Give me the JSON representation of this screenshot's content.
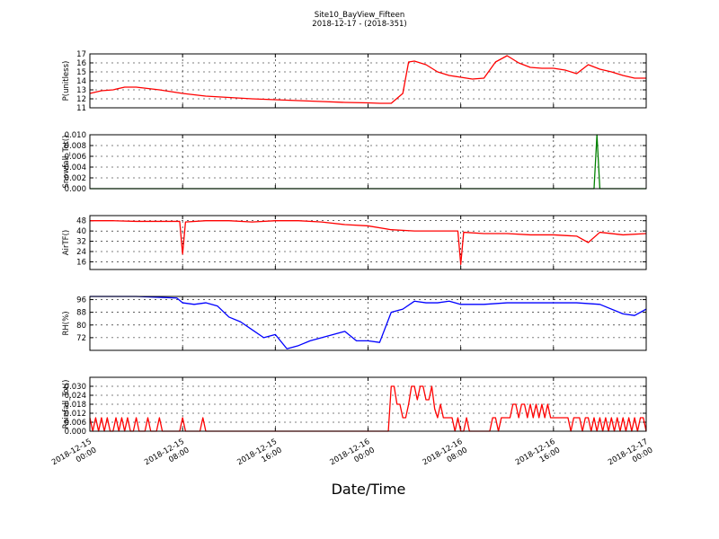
{
  "title": {
    "line1": "Site10_BayView_Fifteen",
    "line2": "2018-12-17 - (2018-351)"
  },
  "xlabel": "Date/Time",
  "x_ticks": [
    {
      "line1": "2018-12-15",
      "line2": "00:00"
    },
    {
      "line1": "2018-12-15",
      "line2": "08:00"
    },
    {
      "line1": "2018-12-15",
      "line2": "16:00"
    },
    {
      "line1": "2018-12-16",
      "line2": "00:00"
    },
    {
      "line1": "2018-12-16",
      "line2": "08:00"
    },
    {
      "line1": "2018-12-16",
      "line2": "16:00"
    },
    {
      "line1": "2018-12-17",
      "line2": "00:00"
    }
  ],
  "chart_data": [
    {
      "type": "line",
      "ylabel": "P(unitless)",
      "ylim": [
        11,
        17
      ],
      "yticks": [
        "11",
        "12",
        "13",
        "14",
        "15",
        "16",
        "17"
      ],
      "grid": true,
      "series": [
        {
          "color": "#ff0000",
          "x": [
            "2018-12-15 00:00",
            "2018-12-15 01:00",
            "2018-12-15 02:00",
            "2018-12-15 03:00",
            "2018-12-15 04:00",
            "2018-12-15 06:00",
            "2018-12-15 08:00",
            "2018-12-15 10:00",
            "2018-12-15 12:00",
            "2018-12-15 14:00",
            "2018-12-15 16:00",
            "2018-12-15 18:00",
            "2018-12-15 20:00",
            "2018-12-15 22:00",
            "2018-12-16 00:00",
            "2018-12-16 01:00",
            "2018-12-16 02:00",
            "2018-12-16 03:00",
            "2018-12-16 03:30",
            "2018-12-16 04:00",
            "2018-12-16 05:00",
            "2018-12-16 06:00",
            "2018-12-16 07:00",
            "2018-12-16 08:00",
            "2018-12-16 09:00",
            "2018-12-16 10:00",
            "2018-12-16 11:00",
            "2018-12-16 12:00",
            "2018-12-16 13:00",
            "2018-12-16 14:00",
            "2018-12-16 15:00",
            "2018-12-16 16:00",
            "2018-12-16 17:00",
            "2018-12-16 18:00",
            "2018-12-16 19:00",
            "2018-12-16 20:00",
            "2018-12-16 21:00",
            "2018-12-16 22:00",
            "2018-12-16 23:00",
            "2018-12-17 00:00"
          ],
          "values": [
            12.6,
            12.9,
            13.0,
            13.3,
            13.3,
            13.0,
            12.6,
            12.3,
            12.15,
            12.0,
            11.9,
            11.8,
            11.7,
            11.6,
            11.55,
            11.5,
            11.5,
            12.6,
            16.1,
            16.2,
            15.8,
            15.0,
            14.6,
            14.4,
            14.2,
            14.3,
            16.1,
            16.8,
            16.0,
            15.5,
            15.4,
            15.4,
            15.2,
            14.8,
            15.8,
            15.3,
            15.0,
            14.6,
            14.3,
            14.3
          ]
        }
      ]
    },
    {
      "type": "line",
      "ylabel": "Snowfall_Tot()",
      "ylim": [
        0,
        0.01
      ],
      "yticks": [
        "0.000",
        "0.002",
        "0.004",
        "0.006",
        "0.008",
        "0.010"
      ],
      "grid": true,
      "series": [
        {
          "color": "#008000",
          "x": [
            "2018-12-15 00:00",
            "2018-12-16 19:30",
            "2018-12-16 19:45",
            "2018-12-16 20:00",
            "2018-12-17 00:00"
          ],
          "values": [
            0,
            0,
            0.01,
            0,
            0
          ]
        }
      ]
    },
    {
      "type": "line",
      "ylabel": "AirTF()",
      "ylim": [
        10,
        52
      ],
      "yticks": [
        "16",
        "24",
        "32",
        "40",
        "48"
      ],
      "grid": true,
      "series": [
        {
          "color": "#ff0000",
          "x": [
            "2018-12-15 00:00",
            "2018-12-15 02:00",
            "2018-12-15 04:00",
            "2018-12-15 06:00",
            "2018-12-15 07:45",
            "2018-12-15 08:00",
            "2018-12-15 08:15",
            "2018-12-15 10:00",
            "2018-12-15 12:00",
            "2018-12-15 14:00",
            "2018-12-15 16:00",
            "2018-12-15 18:00",
            "2018-12-15 20:00",
            "2018-12-15 22:00",
            "2018-12-16 00:00",
            "2018-12-16 02:00",
            "2018-12-16 04:00",
            "2018-12-16 06:00",
            "2018-12-16 07:45",
            "2018-12-16 08:00",
            "2018-12-16 08:15",
            "2018-12-16 10:00",
            "2018-12-16 12:00",
            "2018-12-16 14:00",
            "2018-12-16 16:00",
            "2018-12-16 18:00",
            "2018-12-16 19:00",
            "2018-12-16 20:00",
            "2018-12-16 22:00",
            "2018-12-17 00:00"
          ],
          "values": [
            48,
            48,
            47.5,
            47.5,
            47.5,
            22,
            47,
            48,
            48,
            47,
            48,
            48,
            47,
            45,
            44,
            41,
            40,
            40,
            40,
            14,
            39,
            38,
            38,
            37,
            37,
            36,
            31,
            39,
            37,
            38
          ]
        }
      ]
    },
    {
      "type": "line",
      "ylabel": "RH(%)",
      "ylim": [
        64,
        98
      ],
      "yticks": [
        "72",
        "80",
        "88",
        "96"
      ],
      "grid": true,
      "series": [
        {
          "color": "#0000ff",
          "x": [
            "2018-12-15 00:00",
            "2018-12-15 04:00",
            "2018-12-15 07:30",
            "2018-12-15 08:00",
            "2018-12-15 09:00",
            "2018-12-15 10:00",
            "2018-12-15 11:00",
            "2018-12-15 12:00",
            "2018-12-15 13:00",
            "2018-12-15 14:00",
            "2018-12-15 15:00",
            "2018-12-15 16:00",
            "2018-12-15 17:00",
            "2018-12-15 18:00",
            "2018-12-15 19:00",
            "2018-12-15 20:00",
            "2018-12-15 21:00",
            "2018-12-15 22:00",
            "2018-12-15 23:00",
            "2018-12-16 00:00",
            "2018-12-16 01:00",
            "2018-12-16 02:00",
            "2018-12-16 03:00",
            "2018-12-16 04:00",
            "2018-12-16 05:00",
            "2018-12-16 06:00",
            "2018-12-16 07:00",
            "2018-12-16 08:00",
            "2018-12-16 09:00",
            "2018-12-16 10:00",
            "2018-12-16 12:00",
            "2018-12-16 14:00",
            "2018-12-16 16:00",
            "2018-12-16 18:00",
            "2018-12-16 20:00",
            "2018-12-16 22:00",
            "2018-12-16 23:00",
            "2018-12-17 00:00"
          ],
          "values": [
            98,
            98,
            97,
            94,
            93,
            94,
            92,
            85,
            82,
            77,
            72,
            74,
            65,
            67,
            70,
            72,
            74,
            76,
            70,
            70,
            69,
            88,
            90,
            95,
            94,
            94,
            95,
            93,
            93,
            93,
            94,
            94,
            94,
            94,
            93,
            87,
            86,
            90
          ]
        }
      ]
    },
    {
      "type": "line",
      "ylabel": "Rainfall_Tot()",
      "ylim": [
        0,
        0.036
      ],
      "yticks": [
        "0.000",
        "0.006",
        "0.012",
        "0.018",
        "0.024",
        "0.030"
      ],
      "grid": true,
      "series": [
        {
          "color": "#ff0000",
          "x": [
            "2018-12-15 00:00",
            "2018-12-15 00:15",
            "2018-12-15 00:30",
            "2018-12-15 00:45",
            "2018-12-15 01:00",
            "2018-12-15 01:15",
            "2018-12-15 01:30",
            "2018-12-15 01:45",
            "2018-12-15 02:00",
            "2018-12-15 02:15",
            "2018-12-15 02:30",
            "2018-12-15 02:45",
            "2018-12-15 03:00",
            "2018-12-15 03:15",
            "2018-12-15 03:30",
            "2018-12-15 03:45",
            "2018-12-15 04:00",
            "2018-12-15 04:15",
            "2018-12-15 04:30",
            "2018-12-15 04:45",
            "2018-12-15 05:00",
            "2018-12-15 05:15",
            "2018-12-15 05:30",
            "2018-12-15 05:45",
            "2018-12-15 06:00",
            "2018-12-15 06:15",
            "2018-12-15 06:30",
            "2018-12-15 07:45",
            "2018-12-15 08:00",
            "2018-12-15 08:15",
            "2018-12-15 09:30",
            "2018-12-15 09:45",
            "2018-12-15 10:00",
            "2018-12-16 01:45",
            "2018-12-16 02:00",
            "2018-12-16 02:15",
            "2018-12-16 02:30",
            "2018-12-16 02:45",
            "2018-12-16 03:00",
            "2018-12-16 03:15",
            "2018-12-16 03:30",
            "2018-12-16 03:45",
            "2018-12-16 04:00",
            "2018-12-16 04:15",
            "2018-12-16 04:30",
            "2018-12-16 04:45",
            "2018-12-16 05:00",
            "2018-12-16 05:15",
            "2018-12-16 05:30",
            "2018-12-16 05:45",
            "2018-12-16 06:00",
            "2018-12-16 06:15",
            "2018-12-16 06:30",
            "2018-12-16 07:00",
            "2018-12-16 07:15",
            "2018-12-16 07:30",
            "2018-12-16 07:45",
            "2018-12-16 08:00",
            "2018-12-16 08:15",
            "2018-12-16 08:30",
            "2018-12-16 08:45",
            "2018-12-16 09:00",
            "2018-12-16 09:30",
            "2018-12-16 10:30",
            "2018-12-16 10:45",
            "2018-12-16 11:00",
            "2018-12-16 11:15",
            "2018-12-16 11:30",
            "2018-12-16 12:00",
            "2018-12-16 12:15",
            "2018-12-16 12:30",
            "2018-12-16 12:45",
            "2018-12-16 13:00",
            "2018-12-16 13:15",
            "2018-12-16 13:30",
            "2018-12-16 13:45",
            "2018-12-16 14:00",
            "2018-12-16 14:15",
            "2018-12-16 14:30",
            "2018-12-16 14:45",
            "2018-12-16 15:00",
            "2018-12-16 15:15",
            "2018-12-16 15:30",
            "2018-12-16 15:45",
            "2018-12-16 16:00",
            "2018-12-16 17:00",
            "2018-12-16 17:15",
            "2018-12-16 17:30",
            "2018-12-16 17:45",
            "2018-12-16 18:00",
            "2018-12-16 18:15",
            "2018-12-16 18:30",
            "2018-12-16 18:45",
            "2018-12-16 19:00",
            "2018-12-16 19:15",
            "2018-12-16 19:30",
            "2018-12-16 19:45",
            "2018-12-16 20:00",
            "2018-12-16 20:15",
            "2018-12-16 20:30",
            "2018-12-16 20:45",
            "2018-12-16 21:00",
            "2018-12-16 21:15",
            "2018-12-16 21:30",
            "2018-12-16 21:45",
            "2018-12-16 22:00",
            "2018-12-16 22:15",
            "2018-12-16 22:30",
            "2018-12-16 22:45",
            "2018-12-16 23:00",
            "2018-12-16 23:15",
            "2018-12-16 23:30",
            "2018-12-16 23:45",
            "2018-12-17 00:00"
          ],
          "values": [
            0.009,
            0,
            0.009,
            0,
            0.009,
            0,
            0.009,
            0,
            0,
            0.009,
            0,
            0.009,
            0,
            0.009,
            0,
            0,
            0.009,
            0,
            0,
            0,
            0.009,
            0,
            0,
            0,
            0.009,
            0,
            0,
            0,
            0.009,
            0,
            0,
            0.009,
            0,
            0,
            0.03,
            0.03,
            0.018,
            0.018,
            0.009,
            0.009,
            0.018,
            0.03,
            0.03,
            0.021,
            0.03,
            0.03,
            0.021,
            0.021,
            0.03,
            0.015,
            0.009,
            0.018,
            0.009,
            0.009,
            0.009,
            0,
            0.009,
            0,
            0,
            0.009,
            0,
            0,
            0,
            0,
            0.009,
            0.009,
            0,
            0.009,
            0.009,
            0.009,
            0.018,
            0.018,
            0.009,
            0.018,
            0.018,
            0.009,
            0.018,
            0.009,
            0.018,
            0.009,
            0.018,
            0.009,
            0.018,
            0.009,
            0.009,
            0.009,
            0.009,
            0,
            0.009,
            0.009,
            0.009,
            0,
            0.009,
            0.009,
            0,
            0.009,
            0,
            0.009,
            0,
            0.009,
            0,
            0.009,
            0,
            0.009,
            0,
            0.009,
            0,
            0.009,
            0,
            0.009,
            0,
            0.009,
            0.009,
            0
          ]
        }
      ]
    }
  ]
}
